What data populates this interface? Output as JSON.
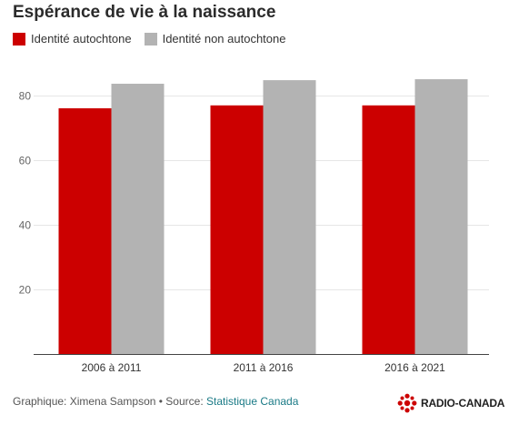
{
  "chart_data": {
    "type": "bar",
    "title": "Espérance de vie à la naissance",
    "categories": [
      "2006 à 2011",
      "2011 à 2016",
      "2016 à 2021"
    ],
    "series": [
      {
        "name": "Identité autochtone",
        "color": "#cc0000",
        "values": [
          76.2,
          77.1,
          77.1
        ]
      },
      {
        "name": "Identité non autochtone",
        "color": "#b3b3b3",
        "values": [
          83.8,
          84.9,
          85.2
        ]
      }
    ],
    "yticks": [
      20,
      40,
      60,
      80
    ],
    "ylim": [
      0,
      90
    ],
    "grid": true,
    "legend": "top-left"
  },
  "footer": {
    "credit": "Graphique: Ximena Sampson • Source: ",
    "source_link": "Statistique Canada"
  },
  "logo": {
    "text": "RADIO-CANADA",
    "icon": "radio-canada-logo-icon",
    "color": "#cc0000"
  }
}
